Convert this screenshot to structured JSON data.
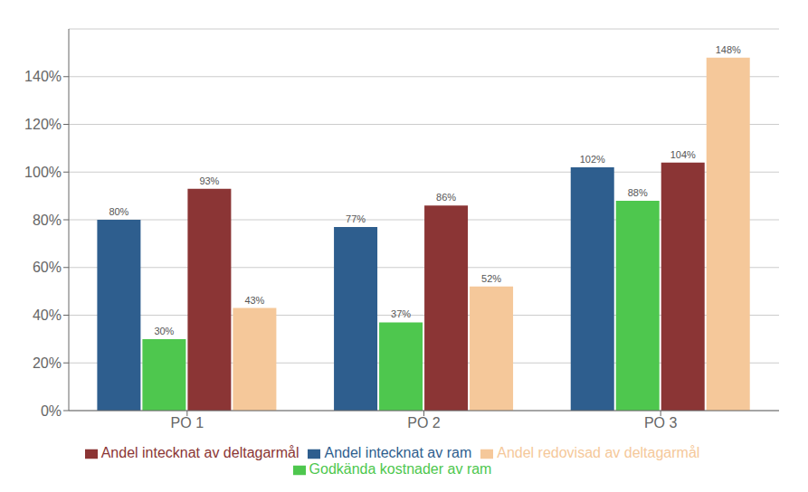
{
  "chart_data": {
    "type": "bar",
    "categories": [
      "PO 1",
      "PO 2",
      "PO 3"
    ],
    "series": [
      {
        "name": "Andel intecknat av ram",
        "color": "#2E5E8E",
        "values": [
          0.8,
          0.77,
          1.02
        ],
        "value_labels": [
          "80%",
          "77%",
          "102%"
        ]
      },
      {
        "name": "Godkända kostnader av ram",
        "color": "#4EC74E",
        "values": [
          0.3,
          0.37,
          0.88
        ],
        "value_labels": [
          "30%",
          "37%",
          "88%"
        ]
      },
      {
        "name": "Andel intecknat av deltagarmål",
        "color": "#8B3535",
        "values": [
          0.93,
          0.86,
          1.04
        ],
        "value_labels": [
          "93%",
          "86%",
          "104%"
        ]
      },
      {
        "name": "Andel redovisad av deltagarmål",
        "color": "#F5C89A",
        "values": [
          0.43,
          0.52,
          1.48
        ],
        "value_labels": [
          "43%",
          "52%",
          "148%"
        ]
      }
    ],
    "ylim": [
      0,
      1.6
    ],
    "yticks": [
      {
        "value": 0.0,
        "label": "0%"
      },
      {
        "value": 0.2,
        "label": "20%"
      },
      {
        "value": 0.4,
        "label": "40%"
      },
      {
        "value": 0.6,
        "label": "60%"
      },
      {
        "value": 0.8,
        "label": "80%"
      },
      {
        "value": 1.0,
        "label": "100%"
      },
      {
        "value": 1.2,
        "label": "120%"
      },
      {
        "value": 1.4,
        "label": "140%"
      }
    ],
    "grid": true,
    "legend": "bottom",
    "data_labels": true
  }
}
